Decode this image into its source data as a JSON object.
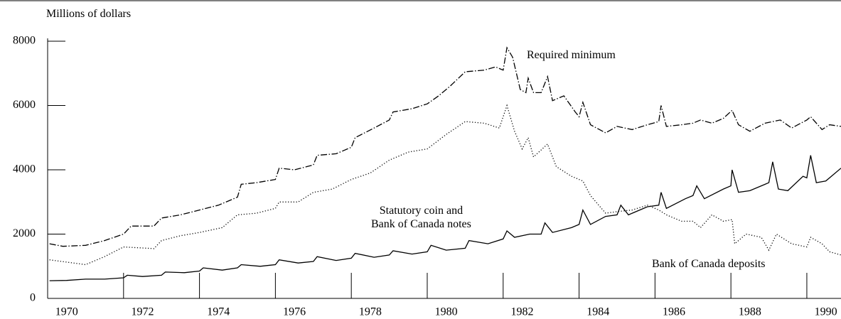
{
  "chart_data": {
    "type": "line",
    "y_label": "Millions of dollars",
    "xlim": [
      1970,
      1990.9
    ],
    "xticks": [
      {
        "value": 1970,
        "label": "1970"
      },
      {
        "value": 1972,
        "label": "1972"
      },
      {
        "value": 1974,
        "label": "1974"
      },
      {
        "value": 1976,
        "label": "1976"
      },
      {
        "value": 1978,
        "label": "1978"
      },
      {
        "value": 1980,
        "label": "1980"
      },
      {
        "value": 1982,
        "label": "1982"
      },
      {
        "value": 1984,
        "label": "1984"
      },
      {
        "value": 1986,
        "label": "1986"
      },
      {
        "value": 1988,
        "label": "1988"
      },
      {
        "value": 1990,
        "label": "1990"
      }
    ],
    "ylim": [
      0,
      8000
    ],
    "yticks": [
      0,
      2000,
      4000,
      6000,
      8000
    ],
    "grid": false,
    "series": [
      {
        "name": "Required minimum",
        "color": "#000000",
        "dash": "dashdot",
        "x": [
          1970.05,
          1970.4,
          1971,
          1971.5,
          1972,
          1972.2,
          1972.8,
          1973,
          1973.5,
          1974,
          1974.5,
          1975,
          1975.1,
          1975.5,
          1976,
          1976.1,
          1976.5,
          1977,
          1977.1,
          1977.6,
          1978,
          1978.1,
          1978.6,
          1979,
          1979.1,
          1979.6,
          1980,
          1980.3,
          1980.6,
          1981,
          1981.5,
          1981.8,
          1982,
          1982.1,
          1982.25,
          1982.45,
          1982.6,
          1982.66,
          1982.8,
          1983,
          1983.17,
          1983.3,
          1983.6,
          1983.9,
          1984,
          1984.1,
          1984.3,
          1984.7,
          1985,
          1985.4,
          1985.8,
          1986.1,
          1986.16,
          1986.3,
          1986.7,
          1987,
          1987.2,
          1987.5,
          1987.8,
          1988.03,
          1988.2,
          1988.5,
          1988.9,
          1989.3,
          1989.6,
          1990,
          1990.1,
          1990.4,
          1990.6,
          1990.9
        ],
        "values": [
          1700,
          1620,
          1650,
          1800,
          2000,
          2250,
          2250,
          2500,
          2600,
          2750,
          2900,
          3150,
          3550,
          3600,
          3700,
          4050,
          4000,
          4150,
          4450,
          4500,
          4700,
          5000,
          5300,
          5550,
          5800,
          5900,
          6050,
          6300,
          6600,
          7050,
          7100,
          7200,
          7100,
          7800,
          7500,
          6500,
          6400,
          6850,
          6400,
          6400,
          6900,
          6150,
          6300,
          5800,
          5650,
          6100,
          5400,
          5150,
          5350,
          5250,
          5400,
          5500,
          6000,
          5350,
          5400,
          5450,
          5550,
          5450,
          5600,
          5850,
          5400,
          5200,
          5450,
          5550,
          5300,
          5550,
          5650,
          5250,
          5400,
          5350
        ]
      },
      {
        "name": "Bank of Canada deposits",
        "color": "#000000",
        "dash": "dotted",
        "x": [
          1970.05,
          1971,
          1971.5,
          1972,
          1972.8,
          1973,
          1973.5,
          1974,
          1974.6,
          1975,
          1975.5,
          1976,
          1976.1,
          1976.6,
          1977,
          1977.5,
          1978,
          1978.5,
          1979,
          1979.5,
          1980,
          1980.5,
          1981,
          1981.5,
          1981.9,
          1982.1,
          1982.3,
          1982.5,
          1982.66,
          1982.8,
          1983.17,
          1983.4,
          1983.8,
          1984.1,
          1984.3,
          1984.7,
          1985,
          1985.4,
          1985.8,
          1986.1,
          1986.3,
          1986.7,
          1987,
          1987.2,
          1987.5,
          1987.8,
          1988.03,
          1988.1,
          1988.4,
          1988.8,
          1989,
          1989.2,
          1989.6,
          1990,
          1990.1,
          1990.4,
          1990.6,
          1990.9
        ],
        "values": [
          1200,
          1050,
          1300,
          1600,
          1550,
          1800,
          1950,
          2050,
          2200,
          2600,
          2650,
          2800,
          3000,
          3000,
          3300,
          3400,
          3700,
          3900,
          4300,
          4550,
          4650,
          5100,
          5500,
          5450,
          5300,
          6000,
          5200,
          4650,
          5000,
          4400,
          4800,
          4100,
          3800,
          3650,
          3200,
          2650,
          2700,
          2750,
          2900,
          2750,
          2600,
          2400,
          2400,
          2200,
          2600,
          2400,
          2450,
          1700,
          2000,
          1900,
          1500,
          2000,
          1700,
          1600,
          1900,
          1700,
          1450,
          1350
        ]
      },
      {
        "name": "Statutory coin and\nBank of Canada notes",
        "color": "#000000",
        "dash": "solid",
        "x": [
          1970.05,
          1970.5,
          1971,
          1971.5,
          1972,
          1972.1,
          1972.5,
          1973,
          1973.1,
          1973.6,
          1974,
          1974.1,
          1974.6,
          1975,
          1975.1,
          1975.6,
          1976,
          1976.1,
          1976.6,
          1977,
          1977.1,
          1977.6,
          1978,
          1978.1,
          1978.6,
          1979,
          1979.1,
          1979.6,
          1980,
          1980.1,
          1980.5,
          1981,
          1981.1,
          1981.6,
          1982,
          1982.1,
          1982.3,
          1982.7,
          1983,
          1983.1,
          1983.3,
          1983.8,
          1984,
          1984.1,
          1984.3,
          1984.7,
          1985,
          1985.1,
          1985.3,
          1985.8,
          1986.1,
          1986.16,
          1986.3,
          1986.8,
          1987,
          1987.1,
          1987.3,
          1987.8,
          1988,
          1988.03,
          1988.2,
          1988.5,
          1988.9,
          1989,
          1989.1,
          1989.25,
          1989.5,
          1989.9,
          1990,
          1990.1,
          1990.25,
          1990.5,
          1990.9
        ],
        "values": [
          550,
          560,
          600,
          600,
          640,
          720,
          680,
          720,
          820,
          800,
          850,
          950,
          880,
          950,
          1050,
          1000,
          1050,
          1200,
          1100,
          1150,
          1300,
          1180,
          1250,
          1400,
          1280,
          1350,
          1480,
          1380,
          1450,
          1650,
          1500,
          1560,
          1800,
          1700,
          1850,
          2100,
          1900,
          2000,
          2000,
          2350,
          2050,
          2200,
          2300,
          2750,
          2300,
          2550,
          2600,
          2900,
          2600,
          2850,
          2900,
          3300,
          2800,
          3100,
          3200,
          3500,
          3100,
          3400,
          3500,
          4000,
          3300,
          3350,
          3550,
          3600,
          4250,
          3400,
          3350,
          3800,
          3750,
          4450,
          3600,
          3650,
          4050
        ]
      }
    ]
  }
}
